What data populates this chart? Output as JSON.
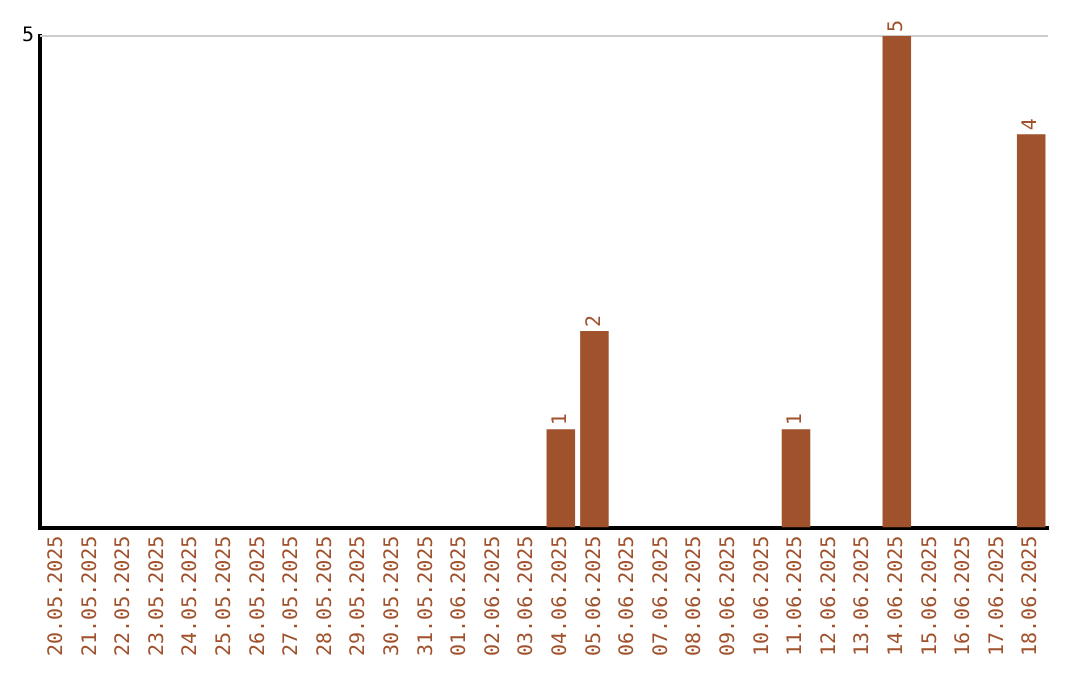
{
  "chart_data": {
    "type": "bar",
    "categories": [
      "20.05.2025",
      "21.05.2025",
      "22.05.2025",
      "23.05.2025",
      "24.05.2025",
      "25.05.2025",
      "26.05.2025",
      "27.05.2025",
      "28.05.2025",
      "29.05.2025",
      "30.05.2025",
      "31.05.2025",
      "01.06.2025",
      "02.06.2025",
      "03.06.2025",
      "04.06.2025",
      "05.06.2025",
      "06.06.2025",
      "07.06.2025",
      "08.06.2025",
      "09.06.2025",
      "10.06.2025",
      "11.06.2025",
      "12.06.2025",
      "13.06.2025",
      "14.06.2025",
      "15.06.2025",
      "16.06.2025",
      "17.06.2025",
      "18.06.2025"
    ],
    "values": [
      null,
      null,
      null,
      null,
      null,
      null,
      null,
      null,
      null,
      null,
      null,
      null,
      null,
      null,
      null,
      1,
      2,
      null,
      null,
      null,
      null,
      null,
      1,
      null,
      null,
      5,
      null,
      null,
      null,
      4
    ],
    "data_labels": true,
    "color": "#a0522d",
    "ylim": [
      0,
      5
    ],
    "yticks": [
      5
    ],
    "ref_lines": [
      {
        "axis": "y",
        "value": 5,
        "color": "#cccccc"
      }
    ],
    "legend": false
  }
}
